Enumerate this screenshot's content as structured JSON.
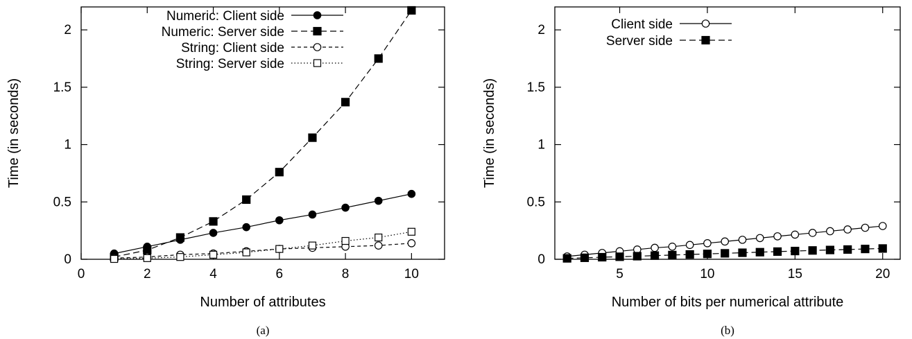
{
  "chart_data": [
    {
      "type": "line",
      "caption": "(a)",
      "xlabel": "Number of attributes",
      "ylabel": "Time (in seconds)",
      "xlim": [
        0,
        11
      ],
      "ylim": [
        0,
        2.2
      ],
      "xticks": [
        0,
        2,
        4,
        6,
        8,
        10
      ],
      "yticks": [
        0,
        0.5,
        1,
        1.5,
        2
      ],
      "xtick_labels": [
        "0",
        "2",
        "4",
        "6",
        "8",
        "10"
      ],
      "ytick_labels": [
        "0",
        "0.5",
        "1",
        "1.5",
        "2"
      ],
      "legend_position": "top-right",
      "series": [
        {
          "name": "Numeric: Client side",
          "line": "solid",
          "marker": "filled-circle",
          "x": [
            1,
            2,
            3,
            4,
            5,
            6,
            7,
            8,
            9,
            10
          ],
          "y": [
            0.05,
            0.11,
            0.17,
            0.23,
            0.28,
            0.34,
            0.39,
            0.45,
            0.51,
            0.57
          ]
        },
        {
          "name": "Numeric: Server side",
          "line": "dashed",
          "marker": "filled-square",
          "x": [
            1,
            2,
            3,
            4,
            5,
            6,
            7,
            8,
            9,
            10
          ],
          "y": [
            0.02,
            0.08,
            0.19,
            0.33,
            0.52,
            0.76,
            1.06,
            1.37,
            1.75,
            2.17
          ]
        },
        {
          "name": "String: Client side",
          "line": "short-dashed",
          "marker": "open-circle",
          "x": [
            1,
            2,
            3,
            4,
            5,
            6,
            7,
            8,
            9,
            10
          ],
          "y": [
            0.01,
            0.02,
            0.04,
            0.05,
            0.07,
            0.09,
            0.1,
            0.11,
            0.12,
            0.14
          ]
        },
        {
          "name": "String: Server side",
          "line": "dotted",
          "marker": "open-square",
          "x": [
            1,
            2,
            3,
            4,
            5,
            6,
            7,
            8,
            9,
            10
          ],
          "y": [
            0.003,
            0.01,
            0.02,
            0.04,
            0.06,
            0.09,
            0.12,
            0.16,
            0.19,
            0.24
          ]
        }
      ]
    },
    {
      "type": "line",
      "caption": "(b)",
      "xlabel": "Number of bits per numerical attribute",
      "ylabel": "Time (in seconds)",
      "xlim": [
        1.3,
        21
      ],
      "ylim": [
        0,
        2.2
      ],
      "xticks": [
        5,
        10,
        15,
        20
      ],
      "yticks": [
        0,
        0.5,
        1,
        1.5,
        2
      ],
      "xtick_labels": [
        "5",
        "10",
        "15",
        "20"
      ],
      "ytick_labels": [
        "0",
        "0.5",
        "1",
        "1.5",
        "2"
      ],
      "legend_position": "top-left",
      "series": [
        {
          "name": "Client side",
          "line": "solid",
          "marker": "open-circle",
          "x": [
            2,
            3,
            4,
            5,
            6,
            7,
            8,
            9,
            10,
            11,
            12,
            13,
            14,
            15,
            16,
            17,
            18,
            19,
            20
          ],
          "y": [
            0.025,
            0.04,
            0.055,
            0.07,
            0.085,
            0.1,
            0.11,
            0.125,
            0.14,
            0.155,
            0.17,
            0.185,
            0.2,
            0.215,
            0.23,
            0.245,
            0.26,
            0.275,
            0.29
          ]
        },
        {
          "name": "Server side",
          "line": "dashed",
          "marker": "filled-square",
          "x": [
            2,
            3,
            4,
            5,
            6,
            7,
            8,
            9,
            10,
            11,
            12,
            13,
            14,
            15,
            16,
            17,
            18,
            19,
            20
          ],
          "y": [
            0.008,
            0.013,
            0.018,
            0.022,
            0.027,
            0.032,
            0.037,
            0.042,
            0.047,
            0.052,
            0.057,
            0.062,
            0.067,
            0.072,
            0.077,
            0.081,
            0.085,
            0.09,
            0.094
          ]
        }
      ]
    }
  ]
}
